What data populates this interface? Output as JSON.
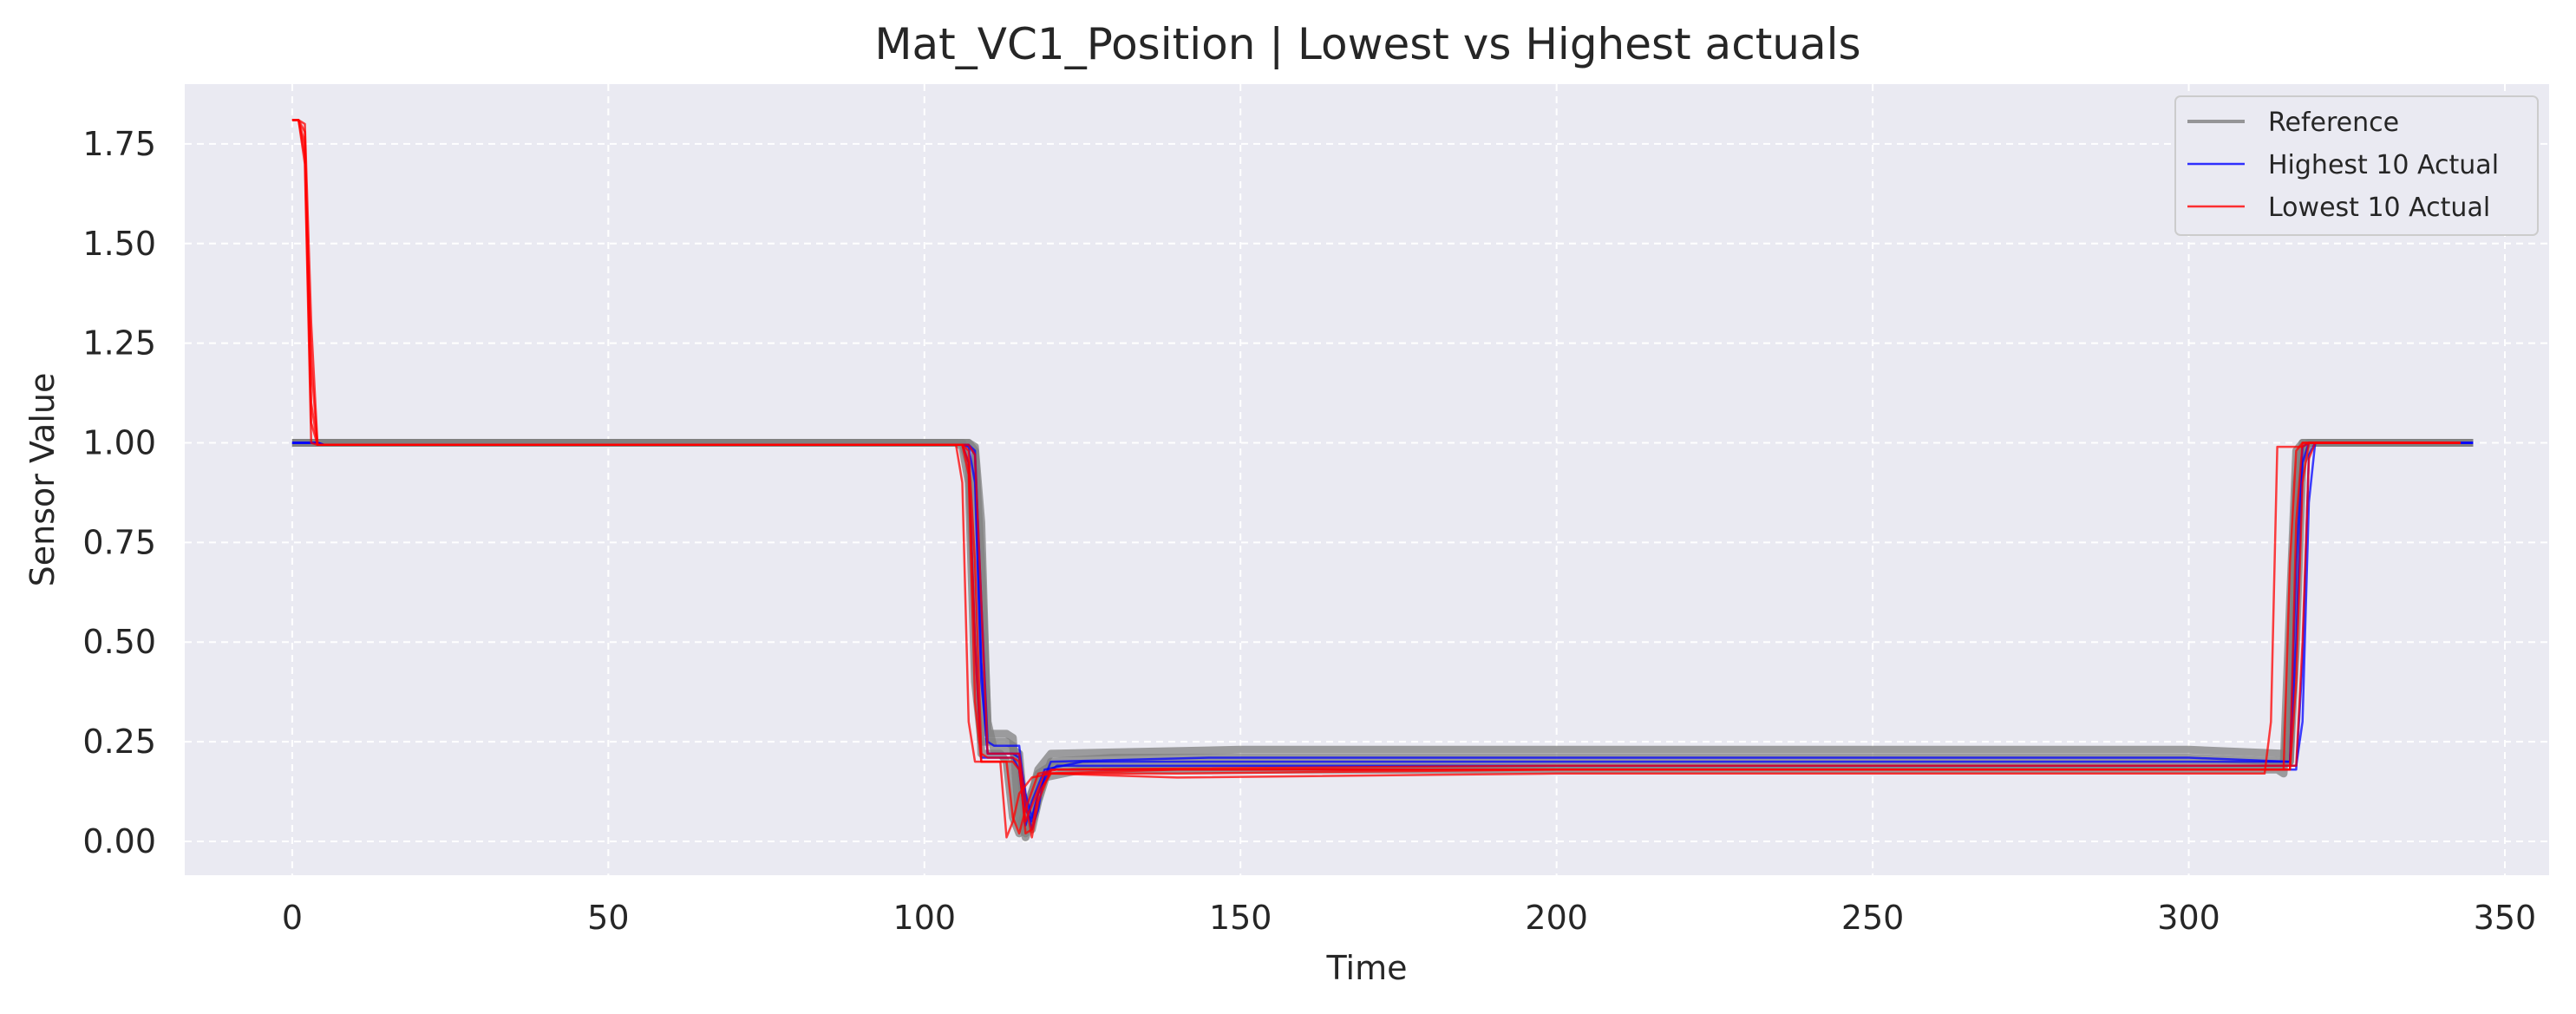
{
  "chart_data": {
    "type": "line",
    "title": "Mat_VC1_Position | Lowest vs Highest actuals",
    "xlabel": "Time",
    "ylabel": "Sensor Value",
    "xlim": [
      -17,
      357
    ],
    "ylim": [
      -0.085,
      1.9
    ],
    "xticks": [
      0,
      50,
      100,
      150,
      200,
      250,
      300,
      350
    ],
    "yticks": [
      0.0,
      0.25,
      0.5,
      0.75,
      1.0,
      1.25,
      1.5,
      1.75
    ],
    "xtick_labels": [
      "0",
      "50",
      "100",
      "150",
      "200",
      "250",
      "300",
      "350"
    ],
    "ytick_labels": [
      "0.00",
      "0.25",
      "0.50",
      "0.75",
      "1.00",
      "1.25",
      "1.50",
      "1.75"
    ],
    "grid": true,
    "legend_position": "top-right",
    "colors": {
      "reference": "#808080",
      "highest": "#0000ff",
      "lowest": "#ff0000",
      "background": "#eaeaf2",
      "grid": "#ffffff"
    },
    "series": [
      {
        "name": "Reference",
        "group": "reference",
        "x": [
          0,
          106,
          107,
          108,
          109,
          110,
          113,
          114,
          115,
          116,
          117,
          118,
          120,
          150,
          200,
          250,
          300,
          315,
          316,
          317,
          318,
          319,
          320,
          330,
          345
        ],
        "y": [
          1.0,
          1.0,
          1.0,
          0.99,
          0.8,
          0.27,
          0.27,
          0.26,
          0.05,
          0.02,
          0.12,
          0.18,
          0.22,
          0.23,
          0.23,
          0.23,
          0.23,
          0.22,
          0.2,
          0.8,
          0.98,
          1.0,
          1.0,
          1.0,
          1.0
        ]
      },
      {
        "name": "Reference",
        "group": "reference",
        "x": [
          0,
          105,
          106,
          107,
          108,
          109,
          113,
          114,
          115,
          116,
          117,
          119,
          125,
          200,
          250,
          314,
          315,
          316,
          317,
          318,
          345
        ],
        "y": [
          1.0,
          1.0,
          0.99,
          0.9,
          0.4,
          0.25,
          0.25,
          0.24,
          0.08,
          0.01,
          0.05,
          0.16,
          0.18,
          0.18,
          0.18,
          0.18,
          0.17,
          0.4,
          0.9,
          1.0,
          1.0
        ]
      },
      {
        "name": "Reference",
        "group": "reference",
        "x": [
          0,
          107,
          108,
          109,
          110,
          111,
          114,
          115,
          116,
          117,
          118,
          120,
          130,
          200,
          300,
          316,
          317,
          318,
          319,
          320,
          345
        ],
        "y": [
          1.0,
          1.0,
          0.98,
          0.7,
          0.3,
          0.23,
          0.23,
          0.22,
          0.04,
          0.03,
          0.1,
          0.2,
          0.21,
          0.21,
          0.21,
          0.2,
          0.5,
          0.95,
          1.0,
          1.0,
          1.0
        ]
      },
      {
        "name": "Reference",
        "group": "reference",
        "x": [
          0,
          106,
          107,
          108,
          109,
          112,
          113,
          114,
          115,
          116,
          118,
          120,
          200,
          300,
          315,
          316,
          317,
          318,
          345
        ],
        "y": [
          1.0,
          1.0,
          0.95,
          0.6,
          0.22,
          0.22,
          0.2,
          0.06,
          0.02,
          0.08,
          0.17,
          0.19,
          0.19,
          0.19,
          0.19,
          0.6,
          0.98,
          1.0,
          1.0
        ]
      },
      {
        "name": "Highest 10 Actual",
        "group": "highest",
        "x": [
          0,
          4,
          5,
          106,
          107,
          108,
          109,
          110,
          114,
          115,
          116,
          117,
          118,
          120,
          145,
          200,
          250,
          300,
          316,
          317,
          318,
          319,
          320,
          345
        ],
        "y": [
          1.0,
          1.0,
          0.995,
          0.995,
          0.99,
          0.9,
          0.4,
          0.22,
          0.22,
          0.21,
          0.08,
          0.05,
          0.12,
          0.2,
          0.21,
          0.21,
          0.21,
          0.21,
          0.2,
          0.5,
          0.95,
          1.0,
          1.0,
          1.0
        ]
      },
      {
        "name": "Highest 10 Actual",
        "group": "highest",
        "x": [
          0,
          4,
          5,
          107,
          108,
          109,
          110,
          111,
          115,
          116,
          117,
          118,
          119,
          121,
          200,
          300,
          317,
          318,
          319,
          320,
          321,
          345
        ],
        "y": [
          1.0,
          1.0,
          0.995,
          0.995,
          0.98,
          0.6,
          0.25,
          0.24,
          0.24,
          0.1,
          0.03,
          0.08,
          0.17,
          0.19,
          0.19,
          0.19,
          0.19,
          0.3,
          0.85,
          1.0,
          1.0,
          1.0
        ]
      },
      {
        "name": "Highest 10 Actual",
        "group": "highest",
        "x": [
          0,
          4,
          5,
          106,
          107,
          108,
          109,
          114,
          115,
          116,
          117,
          119,
          125,
          200,
          300,
          316,
          317,
          318,
          319,
          345
        ],
        "y": [
          1.0,
          1.0,
          0.995,
          0.995,
          0.95,
          0.5,
          0.21,
          0.21,
          0.18,
          0.04,
          0.1,
          0.18,
          0.2,
          0.2,
          0.2,
          0.2,
          0.7,
          0.99,
          1.0,
          1.0
        ]
      },
      {
        "name": "Highest 10 Actual",
        "group": "highest",
        "x": [
          0,
          4,
          5,
          107,
          108,
          109,
          110,
          115,
          116,
          117,
          118,
          120,
          200,
          300,
          317,
          318,
          319,
          320,
          345
        ],
        "y": [
          1.0,
          1.0,
          0.995,
          0.995,
          0.97,
          0.45,
          0.22,
          0.22,
          0.12,
          0.06,
          0.12,
          0.18,
          0.18,
          0.18,
          0.18,
          0.45,
          0.97,
          1.0,
          1.0
        ]
      },
      {
        "name": "Lowest 10 Actual",
        "group": "lowest",
        "x": [
          0,
          1,
          2,
          3,
          4,
          106,
          107,
          108,
          109,
          110,
          114,
          115,
          116,
          117,
          118,
          120,
          140,
          200,
          300,
          316,
          317,
          318,
          319,
          320,
          343
        ],
        "y": [
          1.81,
          1.81,
          1.75,
          1.2,
          0.995,
          0.995,
          0.98,
          0.7,
          0.22,
          0.21,
          0.21,
          0.2,
          0.02,
          0.03,
          0.12,
          0.17,
          0.17,
          0.18,
          0.18,
          0.18,
          0.4,
          0.9,
          1.0,
          1.0,
          1.0
        ]
      },
      {
        "name": "Lowest 10 Actual",
        "group": "lowest",
        "x": [
          0,
          1,
          2,
          3,
          4,
          105,
          106,
          107,
          108,
          114,
          115,
          116,
          117,
          119,
          140,
          200,
          300,
          315,
          316,
          317,
          318,
          343
        ],
        "y": [
          1.81,
          1.81,
          1.7,
          1.0,
          0.995,
          0.995,
          0.9,
          0.3,
          0.2,
          0.2,
          0.18,
          0.05,
          0.09,
          0.17,
          0.18,
          0.18,
          0.18,
          0.18,
          0.7,
          0.98,
          1.0,
          1.0
        ]
      },
      {
        "name": "Lowest 10 Actual",
        "group": "lowest",
        "x": [
          0,
          1,
          2,
          3,
          4,
          106,
          107,
          108,
          109,
          112,
          113,
          114,
          115,
          117,
          120,
          140,
          200,
          312,
          313,
          314,
          318,
          319,
          320,
          343
        ],
        "y": [
          1.81,
          1.81,
          1.8,
          1.3,
          0.995,
          0.995,
          0.95,
          0.5,
          0.2,
          0.2,
          0.01,
          0.05,
          0.12,
          0.16,
          0.17,
          0.16,
          0.17,
          0.17,
          0.3,
          0.99,
          0.99,
          1.0,
          1.0,
          1.0
        ]
      },
      {
        "name": "Lowest 10 Actual",
        "group": "lowest",
        "x": [
          0,
          1,
          2,
          3,
          4,
          107,
          108,
          109,
          110,
          115,
          116,
          117,
          118,
          120,
          200,
          300,
          317,
          318,
          319,
          320,
          343
        ],
        "y": [
          1.81,
          1.81,
          1.78,
          1.1,
          0.995,
          0.995,
          0.97,
          0.6,
          0.22,
          0.22,
          0.1,
          0.01,
          0.1,
          0.18,
          0.19,
          0.19,
          0.19,
          0.5,
          0.96,
          1.0,
          1.0
        ]
      },
      {
        "name": "Lowest 10 Actual",
        "group": "lowest",
        "x": [
          0,
          1,
          2,
          3,
          4,
          106,
          107,
          108,
          109,
          113,
          114,
          115,
          116,
          118,
          121,
          200,
          300,
          316,
          317,
          318,
          343
        ],
        "y": [
          1.81,
          1.81,
          1.72,
          1.05,
          0.995,
          0.995,
          0.92,
          0.35,
          0.2,
          0.2,
          0.06,
          0.02,
          0.08,
          0.17,
          0.18,
          0.18,
          0.18,
          0.18,
          0.8,
          1.0,
          1.0
        ]
      }
    ],
    "legend": [
      {
        "label": "Reference",
        "group": "reference"
      },
      {
        "label": "Highest 10 Actual",
        "group": "highest"
      },
      {
        "label": "Lowest 10 Actual",
        "group": "lowest"
      }
    ]
  }
}
